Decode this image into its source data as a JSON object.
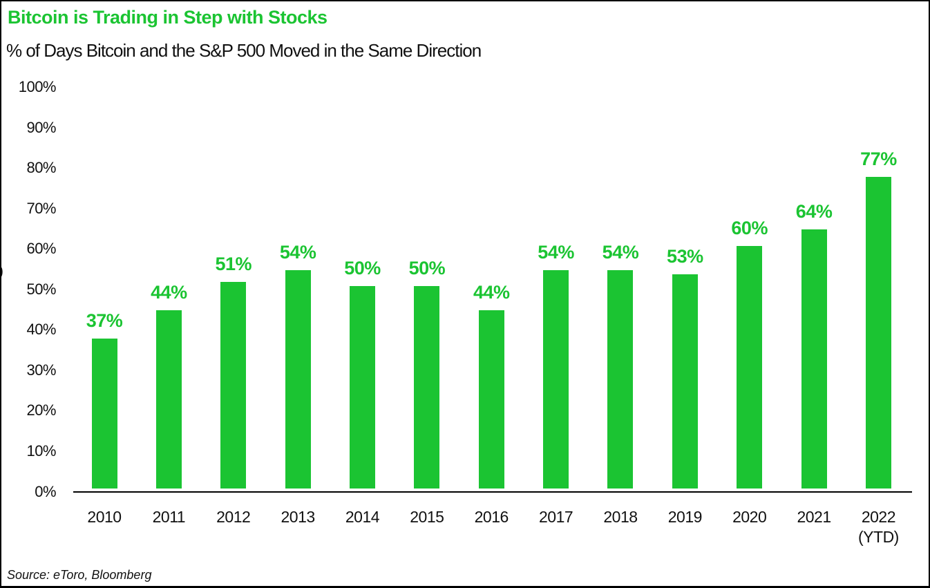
{
  "header": {
    "title": "Bitcoin is Trading in Step with Stocks",
    "subtitle": "% of Days Bitcoin and the S&P 500 Moved in the Same Direction"
  },
  "footer": {
    "source": "Source: eToro, Bloomberg"
  },
  "colors": {
    "accent_green": "#1bc432",
    "text_black": "#111111",
    "axis_black": "#000000",
    "background": "#ffffff"
  },
  "y_axis": {
    "clipped_label": ")",
    "tick_labels": [
      "100%",
      "90%",
      "80%",
      "70%",
      "60%",
      "50%",
      "40%",
      "30%",
      "20%",
      "10%",
      "0%"
    ]
  },
  "chart_data": {
    "type": "bar",
    "title": "Bitcoin is Trading in Step with Stocks",
    "subtitle": "% of Days Bitcoin and the S&P 500 Moved in the Same Direction",
    "categories": [
      "2010",
      "2011",
      "2012",
      "2013",
      "2014",
      "2015",
      "2016",
      "2017",
      "2018",
      "2019",
      "2020",
      "2021",
      "2022"
    ],
    "x_tick_line2": [
      "",
      "",
      "",
      "",
      "",
      "",
      "",
      "",
      "",
      "",
      "",
      "",
      "(YTD)"
    ],
    "values": [
      37,
      44,
      51,
      54,
      50,
      50,
      44,
      54,
      54,
      53,
      60,
      64,
      77
    ],
    "data_labels": [
      "37%",
      "44%",
      "51%",
      "54%",
      "50%",
      "50%",
      "44%",
      "54%",
      "54%",
      "53%",
      "60%",
      "64%",
      "77%"
    ],
    "xlabel": "",
    "ylabel": "",
    "ylim": [
      0,
      100
    ],
    "ytick_step": 10,
    "bar_color": "#1bc432",
    "grid": "off",
    "legend": "none",
    "source": "Source: eToro, Bloomberg"
  }
}
